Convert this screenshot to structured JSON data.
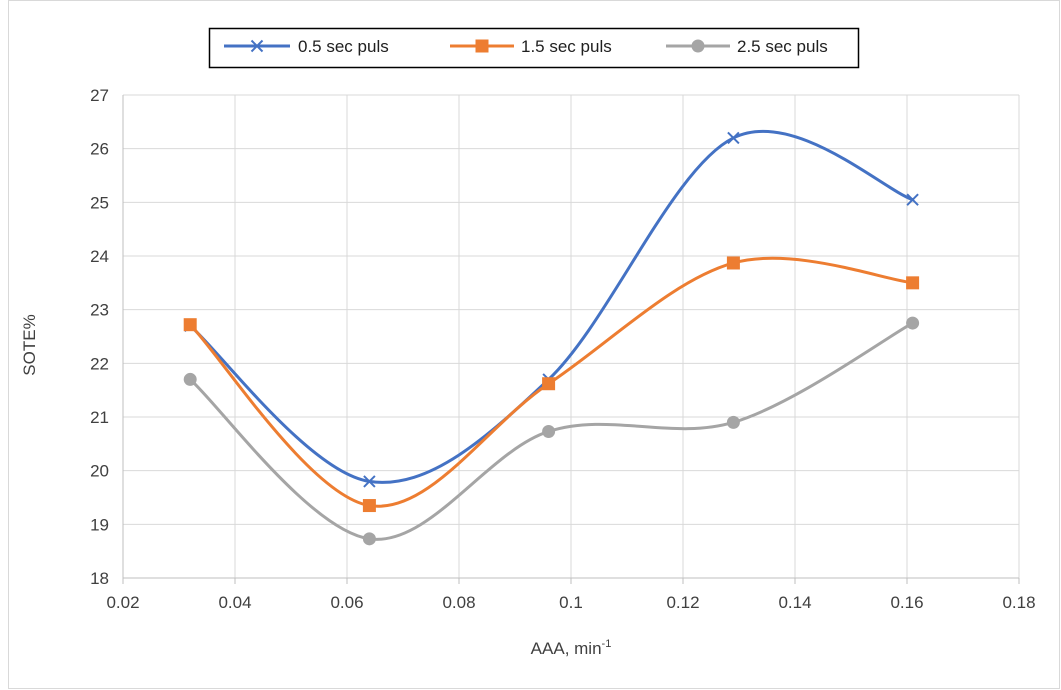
{
  "chart_data": {
    "type": "line",
    "smooth": true,
    "title": "",
    "xlabel": "AAA, min",
    "xlabel_superscript": "-1",
    "ylabel": "SOTE%",
    "xlim": [
      0.02,
      0.18
    ],
    "ylim": [
      18,
      27
    ],
    "xticks": [
      0.02,
      0.04,
      0.06,
      0.08,
      0.1,
      0.12,
      0.14,
      0.16,
      0.18
    ],
    "xtick_labels": [
      "0.02",
      "0.04",
      "0.06",
      "0.08",
      "0.1",
      "0.12",
      "0.14",
      "0.16",
      "0.18"
    ],
    "yticks": [
      18,
      19,
      20,
      21,
      22,
      23,
      24,
      25,
      26,
      27
    ],
    "ytick_labels": [
      "18",
      "19",
      "20",
      "21",
      "22",
      "23",
      "24",
      "25",
      "26",
      "27"
    ],
    "grid": true,
    "legend_position": "top",
    "series": [
      {
        "name": "0.5 sec puls",
        "color": "#4472C4",
        "marker": "x",
        "x": [
          0.032,
          0.064,
          0.096,
          0.129,
          0.161
        ],
        "y": [
          22.7,
          19.8,
          21.7,
          26.2,
          25.05
        ]
      },
      {
        "name": "1.5 sec puls",
        "color": "#ED7D31",
        "marker": "square",
        "x": [
          0.032,
          0.064,
          0.096,
          0.129,
          0.161
        ],
        "y": [
          22.72,
          19.35,
          21.62,
          23.87,
          23.5
        ]
      },
      {
        "name": "2.5 sec puls",
        "color": "#A5A5A5",
        "marker": "circle",
        "x": [
          0.032,
          0.064,
          0.096,
          0.129,
          0.161
        ],
        "y": [
          21.7,
          18.73,
          20.73,
          20.9,
          22.75
        ]
      }
    ]
  }
}
